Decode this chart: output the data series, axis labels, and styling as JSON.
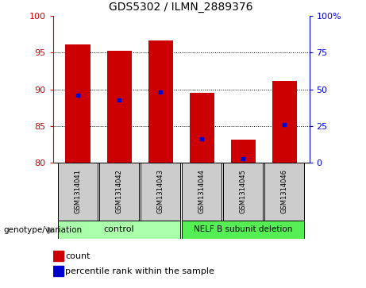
{
  "title": "GDS5302 / ILMN_2889376",
  "samples": [
    "GSM1314041",
    "GSM1314042",
    "GSM1314043",
    "GSM1314044",
    "GSM1314045",
    "GSM1314046"
  ],
  "red_bar_tops": [
    96.1,
    95.2,
    96.6,
    89.5,
    83.1,
    91.1
  ],
  "blue_marker_pos": [
    89.2,
    88.5,
    89.6,
    83.3,
    80.6,
    85.2
  ],
  "bar_bottom": 80,
  "ylim": [
    80,
    100
  ],
  "left_yticks": [
    80,
    85,
    90,
    95,
    100
  ],
  "left_yticklabels": [
    "80",
    "85",
    "90",
    "95",
    "100"
  ],
  "right_tick_positions": [
    80,
    85,
    90,
    95,
    100
  ],
  "right_yticklabels": [
    "0",
    "25",
    "50",
    "75",
    "100%"
  ],
  "dotted_lines": [
    85,
    90,
    95
  ],
  "control_label": "control",
  "deletion_label": "NELF B subunit deletion",
  "genotype_label": "genotype/variation",
  "legend_count": "count",
  "legend_percentile": "percentile rank within the sample",
  "bar_color": "#cc0000",
  "marker_color": "#0000cc",
  "control_bg": "#aaffaa",
  "deletion_bg": "#55ee55",
  "sample_box_bg": "#cccccc",
  "bar_width": 0.6,
  "left_color": "#cc0000",
  "right_color": "#0000cc"
}
